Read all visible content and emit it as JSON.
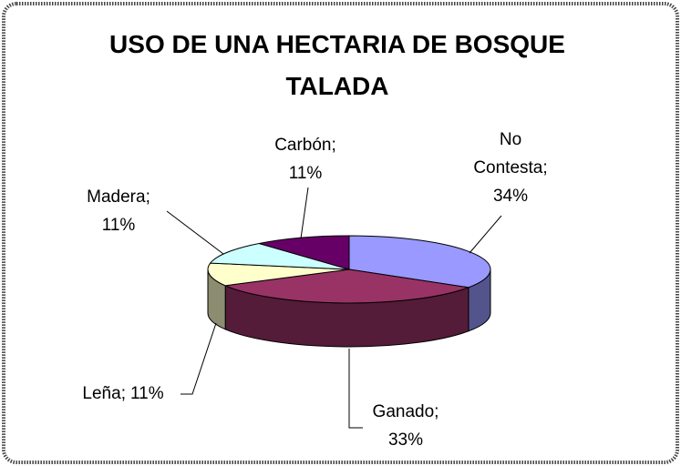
{
  "chart_data": {
    "type": "pie",
    "title": "USO DE UNA HECTARIA DE BOSQUE TALADA",
    "categories": [
      "No Contesta",
      "Ganado",
      "Leña",
      "Madera",
      "Carbón"
    ],
    "values": [
      34,
      33,
      11,
      11,
      11
    ],
    "value_labels": [
      "34%",
      "33%",
      "11%",
      "11%",
      "11%"
    ],
    "label_separator": ";",
    "colors": [
      "#9999ff",
      "#993366",
      "#ffffcc",
      "#ccffff",
      "#660066"
    ]
  }
}
